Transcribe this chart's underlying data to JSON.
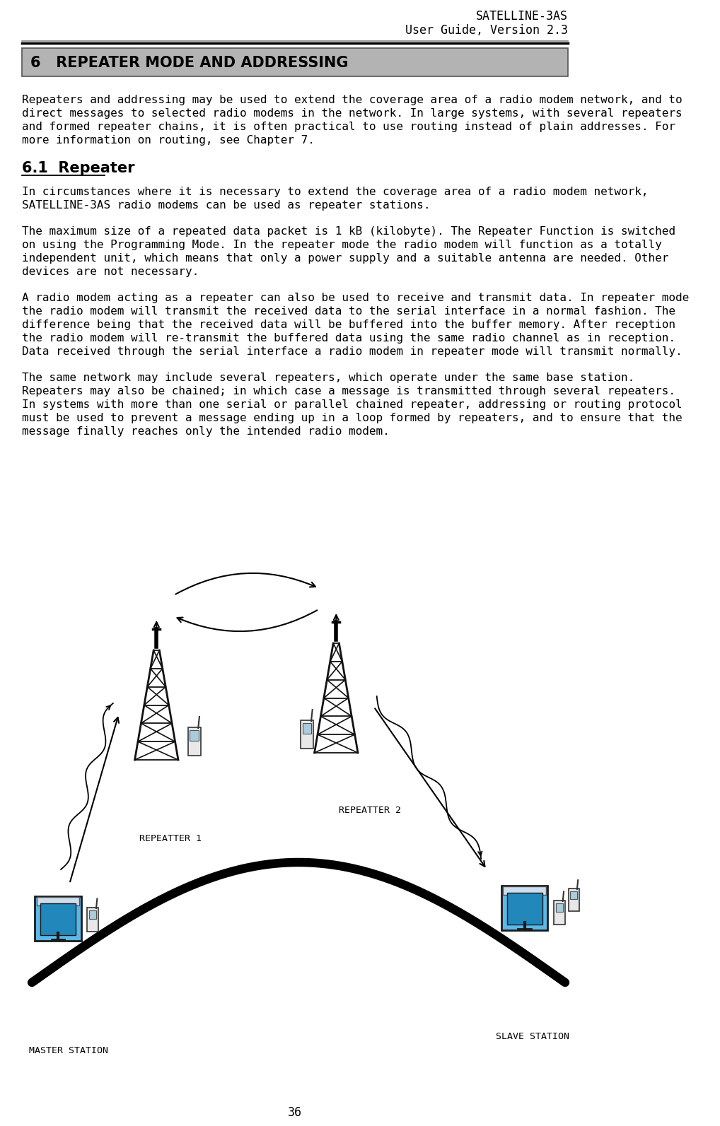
{
  "page_title_line1": "SATELLINE-3AS",
  "page_title_line2": "User Guide, Version 2.3",
  "chapter_heading": "6   REPEATER MODE AND ADDRESSING",
  "section_heading": "6.1  Repeater",
  "body_paragraphs": [
    "Repeaters and addressing may be used to extend the coverage area of a radio modem network, and to direct messages to selected radio modems in the network. In large systems, with several repeaters and formed repeater chains, it is often practical to use routing instead of plain addresses. For more information on routing, see Chapter 7.",
    "In circumstances where it is necessary to extend the coverage area of a radio modem network, SATELLINE-3AS radio modems can be used as repeater stations.",
    "The maximum size of a repeated data packet is 1 kB (kilobyte). The Repeater Function is switched on using the Programming Mode. In the repeater mode the radio modem will function as a totally independent unit, which means that only a power supply and a suitable antenna are needed. Other devices are not necessary.",
    "A radio modem acting as a repeater can also be used to receive and transmit data. In repeater mode the radio modem will transmit the received data to the serial interface in a normal fashion. The difference being that the received data will be buffered into the buffer memory. After reception the radio modem will re-transmit the buffered data using the same radio channel as in reception. Data received through the serial interface a radio modem in repeater mode will transmit  normally.",
    "The same network may include several repeaters, which operate under the same base station. Repeaters may also be chained; in which case a message is transmitted through several repeaters. In systems with more than one serial or parallel chained repeater,  addressing or routing protocol must be used to prevent a message ending up in a loop formed by repeaters, and to ensure that the message finally reaches only the intended radio modem."
  ],
  "diagram_labels": {
    "master": "MASTER STATION",
    "repeater1": "REPEATTER 1",
    "repeater2": "REPEATTER 2",
    "slave": "SLAVE STATION"
  },
  "page_number": "36",
  "bg_color": "#ffffff",
  "heading_bg": "#b3b3b3",
  "heading_text_color": "#000000",
  "body_text_color": "#000000",
  "font_size_body": 11.5,
  "font_size_heading": 15,
  "font_size_section": 15,
  "font_size_page_title": 12,
  "font_size_diagram_label": 9.5
}
